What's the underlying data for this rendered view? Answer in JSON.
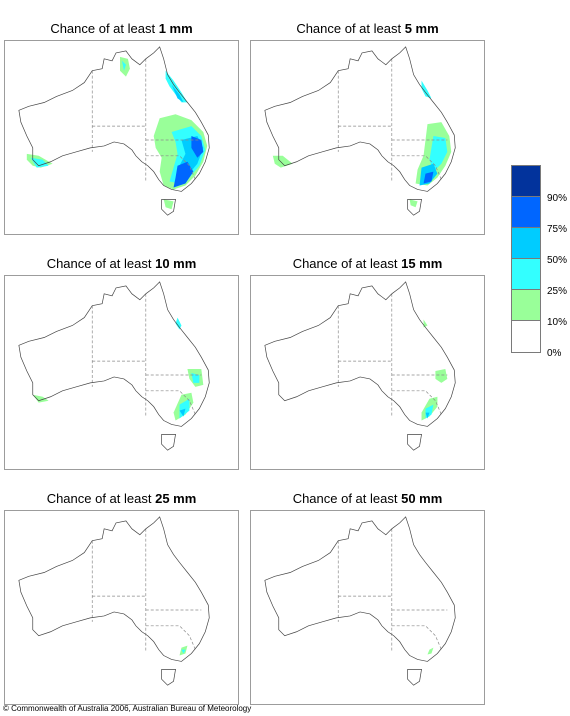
{
  "panels": [
    {
      "prefix": "Chance of at least ",
      "amount": "1 mm"
    },
    {
      "prefix": "Chance of at least ",
      "amount": "5 mm"
    },
    {
      "prefix": "Chance of at least ",
      "amount": "10 mm"
    },
    {
      "prefix": "Chance of at least ",
      "amount": "15 mm"
    },
    {
      "prefix": "Chance of at least ",
      "amount": "25 mm"
    },
    {
      "prefix": "Chance of at least ",
      "amount": "50 mm"
    }
  ],
  "legend": {
    "labels": [
      "90%",
      "75%",
      "50%",
      "25%",
      "10%",
      "0%"
    ],
    "colors": [
      "#02339c",
      "#0066ff",
      "#00ccff",
      "#33ffff",
      "#99ff99",
      "#ffffff"
    ]
  },
  "footer": "© Commonwealth of Australia 2006, Australian Bureau of Meteorology"
}
